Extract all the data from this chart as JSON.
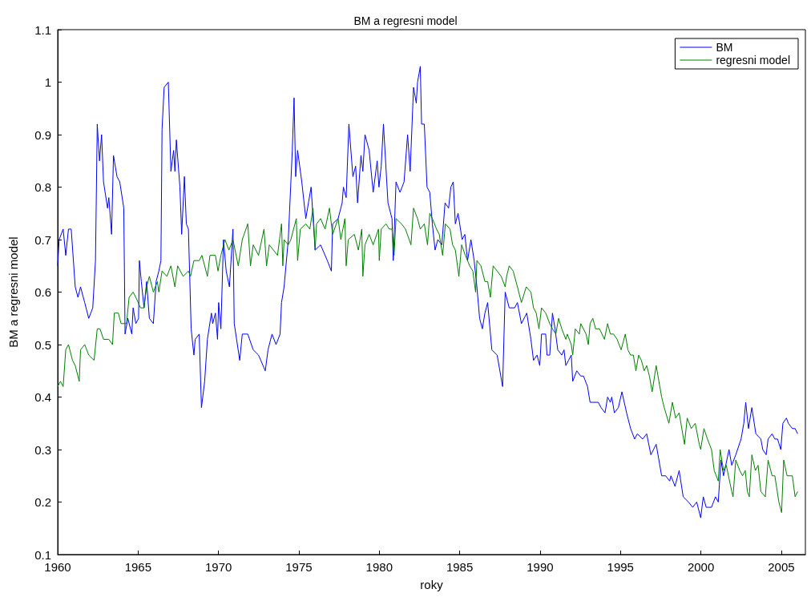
{
  "chart_data": {
    "type": "line",
    "title": "BM a regresni model",
    "xlabel": "roky",
    "ylabel": "BM a regresni model",
    "xlim": [
      1960,
      2006.5
    ],
    "xticks": [
      1960,
      1965,
      1970,
      1975,
      1980,
      1985,
      1990,
      1995,
      2000,
      2005
    ],
    "ylim": [
      0.1,
      1.1
    ],
    "yticks": [
      0.1,
      0.2,
      0.3,
      0.4,
      0.5,
      0.6,
      0.7,
      0.8,
      0.9,
      1,
      1.1
    ],
    "grid": false,
    "legend": "top right",
    "marker": "none",
    "line_style": "solid",
    "series": [
      {
        "name": "BM",
        "color": "#0000ff",
        "x": [
          1960.0,
          1960.09,
          1960.34,
          1960.5,
          1960.67,
          1960.84,
          1961.09,
          1961.26,
          1961.42,
          1961.68,
          1961.93,
          1962.18,
          1962.35,
          1962.46,
          1962.6,
          1962.73,
          1962.85,
          1963.1,
          1963.18,
          1963.35,
          1963.47,
          1963.69,
          1963.86,
          1964.11,
          1964.19,
          1964.36,
          1964.61,
          1964.69,
          1964.86,
          1965.03,
          1965.08,
          1965.2,
          1965.37,
          1965.53,
          1965.7,
          1965.95,
          1966.12,
          1966.29,
          1966.42,
          1966.49,
          1966.62,
          1966.88,
          1967.04,
          1967.21,
          1967.29,
          1967.38,
          1967.6,
          1967.71,
          1967.88,
          1968.0,
          1968.13,
          1968.3,
          1968.47,
          1968.55,
          1968.8,
          1968.94,
          1969.14,
          1969.31,
          1969.56,
          1969.64,
          1969.81,
          1969.94,
          1970.01,
          1970.15,
          1970.31,
          1970.48,
          1970.68,
          1970.9,
          1970.98,
          1971.32,
          1971.48,
          1971.82,
          1972.16,
          1972.49,
          1972.91,
          1973.08,
          1973.33,
          1973.58,
          1973.83,
          1973.92,
          1974.08,
          1974.34,
          1974.59,
          1974.7,
          1974.8,
          1974.92,
          1975.18,
          1975.43,
          1975.76,
          1976.01,
          1976.35,
          1976.77,
          1977.02,
          1977.1,
          1977.44,
          1977.69,
          1977.77,
          1977.94,
          1978.11,
          1978.36,
          1978.53,
          1978.65,
          1978.86,
          1978.98,
          1979.11,
          1979.37,
          1979.62,
          1979.87,
          1979.98,
          1980.12,
          1980.26,
          1980.54,
          1980.79,
          1980.87,
          1981.04,
          1981.29,
          1981.54,
          1981.76,
          1981.92,
          1982.13,
          1982.3,
          1982.38,
          1982.55,
          1982.63,
          1982.8,
          1982.97,
          1983.14,
          1983.3,
          1983.47,
          1983.64,
          1983.89,
          1984.09,
          1984.31,
          1984.45,
          1984.6,
          1984.73,
          1984.9,
          1985.15,
          1985.32,
          1985.49,
          1985.7,
          1985.9,
          1986.07,
          1986.24,
          1986.41,
          1986.57,
          1986.74,
          1987.0,
          1987.33,
          1987.67,
          1987.83,
          1988.08,
          1988.42,
          1988.59,
          1988.84,
          1989.17,
          1989.43,
          1989.59,
          1989.81,
          1989.98,
          1990.09,
          1990.35,
          1990.43,
          1990.6,
          1990.77,
          1990.93,
          1991.1,
          1991.35,
          1991.49,
          1991.6,
          1991.77,
          1991.94,
          1992.03,
          1992.28,
          1992.53,
          1992.7,
          1992.95,
          1993.11,
          1993.28,
          1993.62,
          1993.79,
          1994.04,
          1994.2,
          1994.37,
          1994.46,
          1994.62,
          1994.87,
          1995.09,
          1995.38,
          1995.63,
          1995.88,
          1996.05,
          1996.38,
          1996.63,
          1996.89,
          1997.22,
          1997.56,
          1997.81,
          1998.06,
          1998.14,
          1998.39,
          1998.65,
          1998.9,
          1999.23,
          1999.49,
          1999.74,
          1999.99,
          2000.15,
          2000.33,
          2000.66,
          2000.91,
          2001.08,
          2001.25,
          2001.41,
          2001.75,
          2001.92,
          2002.17,
          2002.5,
          2002.67,
          2002.79,
          2002.96,
          2003.17,
          2003.42,
          2003.73,
          2003.85,
          2004.06,
          2004.18,
          2004.43,
          2004.6,
          2004.77,
          2004.97,
          2005.1,
          2005.32,
          2005.44,
          2005.69,
          2005.86,
          2006.02
        ],
        "values": [
          0.65,
          0.7,
          0.72,
          0.67,
          0.72,
          0.72,
          0.61,
          0.59,
          0.61,
          0.58,
          0.55,
          0.57,
          0.66,
          0.92,
          0.85,
          0.9,
          0.81,
          0.76,
          0.78,
          0.71,
          0.86,
          0.82,
          0.81,
          0.76,
          0.52,
          0.55,
          0.52,
          0.57,
          0.54,
          0.55,
          0.66,
          0.62,
          0.57,
          0.62,
          0.55,
          0.54,
          0.62,
          0.64,
          0.66,
          0.91,
          0.99,
          1.0,
          0.83,
          0.87,
          0.83,
          0.89,
          0.8,
          0.71,
          0.82,
          0.73,
          0.72,
          0.53,
          0.48,
          0.51,
          0.52,
          0.38,
          0.43,
          0.51,
          0.56,
          0.54,
          0.56,
          0.51,
          0.58,
          0.53,
          0.7,
          0.64,
          0.61,
          0.72,
          0.54,
          0.47,
          0.52,
          0.52,
          0.49,
          0.48,
          0.45,
          0.49,
          0.52,
          0.5,
          0.52,
          0.58,
          0.61,
          0.7,
          0.87,
          0.97,
          0.82,
          0.87,
          0.81,
          0.74,
          0.8,
          0.68,
          0.69,
          0.66,
          0.64,
          0.73,
          0.74,
          0.77,
          0.8,
          0.78,
          0.92,
          0.82,
          0.84,
          0.77,
          0.86,
          0.83,
          0.9,
          0.87,
          0.79,
          0.85,
          0.8,
          0.84,
          0.92,
          0.77,
          0.74,
          0.66,
          0.81,
          0.79,
          0.81,
          0.9,
          0.83,
          0.99,
          0.96,
          1.0,
          1.03,
          0.92,
          0.92,
          0.8,
          0.79,
          0.73,
          0.68,
          0.7,
          0.69,
          0.77,
          0.76,
          0.8,
          0.81,
          0.73,
          0.75,
          0.7,
          0.71,
          0.66,
          0.7,
          0.66,
          0.61,
          0.55,
          0.53,
          0.56,
          0.58,
          0.49,
          0.48,
          0.42,
          0.6,
          0.57,
          0.57,
          0.58,
          0.54,
          0.56,
          0.51,
          0.47,
          0.48,
          0.46,
          0.52,
          0.52,
          0.48,
          0.48,
          0.56,
          0.53,
          0.49,
          0.48,
          0.49,
          0.46,
          0.47,
          0.48,
          0.43,
          0.45,
          0.44,
          0.44,
          0.42,
          0.39,
          0.39,
          0.39,
          0.38,
          0.37,
          0.4,
          0.39,
          0.4,
          0.37,
          0.38,
          0.41,
          0.37,
          0.34,
          0.32,
          0.33,
          0.32,
          0.33,
          0.29,
          0.31,
          0.25,
          0.25,
          0.24,
          0.25,
          0.23,
          0.26,
          0.21,
          0.2,
          0.19,
          0.2,
          0.17,
          0.21,
          0.19,
          0.19,
          0.21,
          0.2,
          0.28,
          0.25,
          0.3,
          0.27,
          0.29,
          0.32,
          0.35,
          0.39,
          0.34,
          0.38,
          0.33,
          0.32,
          0.3,
          0.29,
          0.32,
          0.33,
          0.32,
          0.32,
          0.3,
          0.35,
          0.36,
          0.35,
          0.34,
          0.34,
          0.33
        ]
      },
      {
        "name": "regresni model",
        "color": "#008000",
        "x": [
          1960.0,
          1960.17,
          1960.34,
          1960.5,
          1960.67,
          1960.92,
          1961.09,
          1961.34,
          1961.42,
          1961.68,
          1961.93,
          1962.26,
          1962.46,
          1962.63,
          1962.85,
          1963.18,
          1963.41,
          1963.52,
          1963.77,
          1963.94,
          1964.28,
          1964.44,
          1964.69,
          1964.86,
          1965.15,
          1965.37,
          1965.53,
          1965.7,
          1965.95,
          1966.2,
          1966.29,
          1966.49,
          1966.79,
          1967.04,
          1967.29,
          1967.46,
          1967.8,
          1968.13,
          1968.26,
          1968.47,
          1968.8,
          1968.97,
          1969.31,
          1969.47,
          1969.81,
          1969.97,
          1970.15,
          1970.4,
          1970.65,
          1970.9,
          1971.23,
          1971.48,
          1971.82,
          1971.99,
          1972.16,
          1972.49,
          1972.83,
          1972.99,
          1973.16,
          1973.42,
          1973.67,
          1973.92,
          1974.0,
          1974.08,
          1974.34,
          1974.5,
          1974.84,
          1974.92,
          1975.09,
          1975.43,
          1975.68,
          1975.88,
          1976.01,
          1976.1,
          1976.35,
          1976.63,
          1976.9,
          1977.1,
          1977.44,
          1977.61,
          1977.86,
          1977.94,
          1978.07,
          1978.45,
          1978.7,
          1978.91,
          1978.98,
          1979.11,
          1979.37,
          1979.62,
          1979.95,
          1980.0,
          1980.12,
          1980.42,
          1980.62,
          1980.79,
          1980.92,
          1981.04,
          1981.38,
          1981.63,
          1981.97,
          1982.13,
          1982.38,
          1982.55,
          1982.8,
          1983.0,
          1983.14,
          1983.3,
          1983.56,
          1983.73,
          1983.94,
          1984.11,
          1984.4,
          1984.56,
          1984.73,
          1984.95,
          1985.12,
          1985.35,
          1985.49,
          1985.62,
          1985.82,
          1985.99,
          1986.07,
          1986.32,
          1986.57,
          1986.74,
          1986.91,
          1987.08,
          1987.33,
          1987.58,
          1987.83,
          1987.92,
          1988.08,
          1988.33,
          1988.59,
          1988.84,
          1989.14,
          1989.43,
          1989.59,
          1989.76,
          1989.93,
          1990.09,
          1990.35,
          1990.6,
          1990.77,
          1990.98,
          1991.15,
          1991.35,
          1991.6,
          1991.69,
          1991.94,
          1992.03,
          1992.19,
          1992.44,
          1992.53,
          1992.86,
          1993.0,
          1993.11,
          1993.28,
          1993.45,
          1993.7,
          1994.0,
          1994.2,
          1994.37,
          1994.57,
          1994.79,
          1995.04,
          1995.3,
          1995.46,
          1995.63,
          1995.8,
          1995.96,
          1996.13,
          1996.3,
          1996.47,
          1996.63,
          1996.8,
          1996.97,
          1997.22,
          1997.56,
          1997.72,
          1998.01,
          1998.23,
          1998.43,
          1998.65,
          1998.98,
          1999.15,
          1999.4,
          1999.65,
          1999.9,
          1999.99,
          2000.19,
          2000.41,
          2000.66,
          2000.83,
          2001.08,
          2001.2,
          2001.41,
          2001.58,
          2001.92,
          2002.0,
          2002.17,
          2002.42,
          2002.59,
          2002.76,
          2002.89,
          2003.01,
          2003.17,
          2003.39,
          2003.56,
          2003.73,
          2004.01,
          2004.18,
          2004.43,
          2004.6,
          2004.85,
          2005.02,
          2005.15,
          2005.36,
          2005.61,
          2005.69,
          2005.86,
          2006.02
        ],
        "values": [
          0.42,
          0.43,
          0.42,
          0.49,
          0.5,
          0.47,
          0.46,
          0.43,
          0.49,
          0.5,
          0.48,
          0.47,
          0.53,
          0.53,
          0.51,
          0.51,
          0.5,
          0.56,
          0.56,
          0.54,
          0.54,
          0.59,
          0.6,
          0.59,
          0.57,
          0.57,
          0.61,
          0.63,
          0.6,
          0.62,
          0.6,
          0.64,
          0.63,
          0.65,
          0.61,
          0.65,
          0.63,
          0.64,
          0.63,
          0.66,
          0.66,
          0.67,
          0.63,
          0.67,
          0.67,
          0.64,
          0.67,
          0.7,
          0.68,
          0.7,
          0.65,
          0.7,
          0.73,
          0.65,
          0.69,
          0.67,
          0.72,
          0.65,
          0.69,
          0.68,
          0.67,
          0.73,
          0.65,
          0.7,
          0.69,
          0.7,
          0.74,
          0.66,
          0.72,
          0.73,
          0.72,
          0.76,
          0.68,
          0.73,
          0.74,
          0.72,
          0.76,
          0.71,
          0.74,
          0.7,
          0.74,
          0.65,
          0.7,
          0.71,
          0.68,
          0.72,
          0.63,
          0.69,
          0.71,
          0.69,
          0.72,
          0.66,
          0.72,
          0.73,
          0.72,
          0.72,
          0.67,
          0.74,
          0.73,
          0.72,
          0.69,
          0.76,
          0.74,
          0.72,
          0.73,
          0.69,
          0.75,
          0.74,
          0.72,
          0.71,
          0.67,
          0.73,
          0.72,
          0.69,
          0.68,
          0.63,
          0.69,
          0.67,
          0.66,
          0.65,
          0.64,
          0.6,
          0.66,
          0.65,
          0.62,
          0.62,
          0.59,
          0.65,
          0.64,
          0.63,
          0.61,
          0.63,
          0.65,
          0.64,
          0.61,
          0.58,
          0.61,
          0.6,
          0.57,
          0.56,
          0.53,
          0.57,
          0.56,
          0.54,
          0.53,
          0.52,
          0.55,
          0.53,
          0.51,
          0.52,
          0.5,
          0.48,
          0.53,
          0.52,
          0.54,
          0.52,
          0.5,
          0.54,
          0.55,
          0.53,
          0.53,
          0.51,
          0.54,
          0.52,
          0.52,
          0.51,
          0.49,
          0.52,
          0.49,
          0.48,
          0.48,
          0.45,
          0.48,
          0.47,
          0.45,
          0.46,
          0.44,
          0.41,
          0.46,
          0.4,
          0.38,
          0.35,
          0.39,
          0.36,
          0.37,
          0.31,
          0.36,
          0.34,
          0.35,
          0.31,
          0.3,
          0.34,
          0.32,
          0.3,
          0.26,
          0.24,
          0.3,
          0.26,
          0.27,
          0.22,
          0.21,
          0.28,
          0.26,
          0.25,
          0.26,
          0.22,
          0.21,
          0.29,
          0.26,
          0.27,
          0.22,
          0.21,
          0.28,
          0.25,
          0.25,
          0.2,
          0.18,
          0.28,
          0.25,
          0.25,
          0.25,
          0.21,
          0.22
        ]
      }
    ]
  }
}
